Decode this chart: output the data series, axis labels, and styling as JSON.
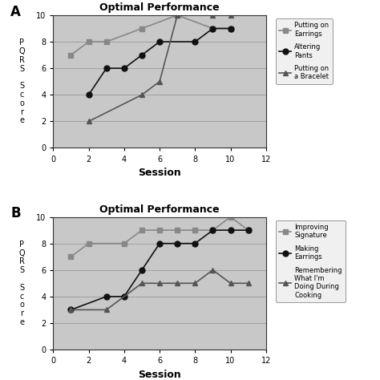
{
  "panel_A": {
    "title": "Optimal Performance",
    "label": "A",
    "series": [
      {
        "label": "Putting on\nEarrings",
        "x": [
          1,
          2,
          3,
          5,
          7,
          9,
          10
        ],
        "y": [
          7,
          8,
          8,
          9,
          10,
          9,
          9
        ],
        "color": "#888888",
        "marker": "s",
        "linestyle": "-"
      },
      {
        "label": "Altering\nPants",
        "x": [
          2,
          3,
          4,
          5,
          6,
          8,
          9,
          10
        ],
        "y": [
          4,
          6,
          6,
          7,
          8,
          8,
          9,
          9
        ],
        "color": "#111111",
        "marker": "o",
        "linestyle": "-"
      },
      {
        "label": "Putting on\na Bracelet",
        "x": [
          2,
          5,
          6,
          7,
          9,
          10
        ],
        "y": [
          2,
          4,
          5,
          10,
          10,
          10
        ],
        "color": "#555555",
        "marker": "^",
        "linestyle": "-"
      }
    ],
    "xlim": [
      0,
      12
    ],
    "ylim": [
      0,
      10
    ],
    "xticks": [
      0,
      2,
      4,
      6,
      8,
      10,
      12
    ],
    "yticks": [
      0,
      2,
      4,
      6,
      8,
      10
    ],
    "xlabel": "Session",
    "ylabel": "P\nQ\nR\nS\n \nS\nc\no\nr\ne"
  },
  "panel_B": {
    "title": "Optimal Performance",
    "label": "B",
    "series": [
      {
        "label": "Improving\nSignature",
        "x": [
          1,
          2,
          4,
          5,
          6,
          7,
          8,
          9,
          10,
          11
        ],
        "y": [
          7,
          8,
          8,
          9,
          9,
          9,
          9,
          9,
          10,
          9
        ],
        "color": "#888888",
        "marker": "s",
        "linestyle": "-"
      },
      {
        "label": "Making\nEarrings",
        "x": [
          1,
          3,
          4,
          5,
          6,
          7,
          8,
          9,
          10,
          11
        ],
        "y": [
          3,
          4,
          4,
          6,
          8,
          8,
          8,
          9,
          9,
          9
        ],
        "color": "#111111",
        "marker": "o",
        "linestyle": "-"
      },
      {
        "label": "Remembering\nWhat I'm\nDoing During\nCooking",
        "x": [
          1,
          3,
          5,
          6,
          7,
          8,
          9,
          10,
          11
        ],
        "y": [
          3,
          3,
          5,
          5,
          5,
          5,
          6,
          5,
          5
        ],
        "color": "#555555",
        "marker": "^",
        "linestyle": "-"
      }
    ],
    "xlim": [
      0,
      12
    ],
    "ylim": [
      0,
      10
    ],
    "xticks": [
      0,
      2,
      4,
      6,
      8,
      10,
      12
    ],
    "yticks": [
      0,
      2,
      4,
      6,
      8,
      10
    ],
    "xlabel": "Session",
    "ylabel": "P\nQ\nR\nS\n \nS\nc\no\nr\ne"
  },
  "bg_color": "#c8c8c8",
  "fig_bg": "#ffffff",
  "marker_size": 5,
  "linewidth": 1.2
}
